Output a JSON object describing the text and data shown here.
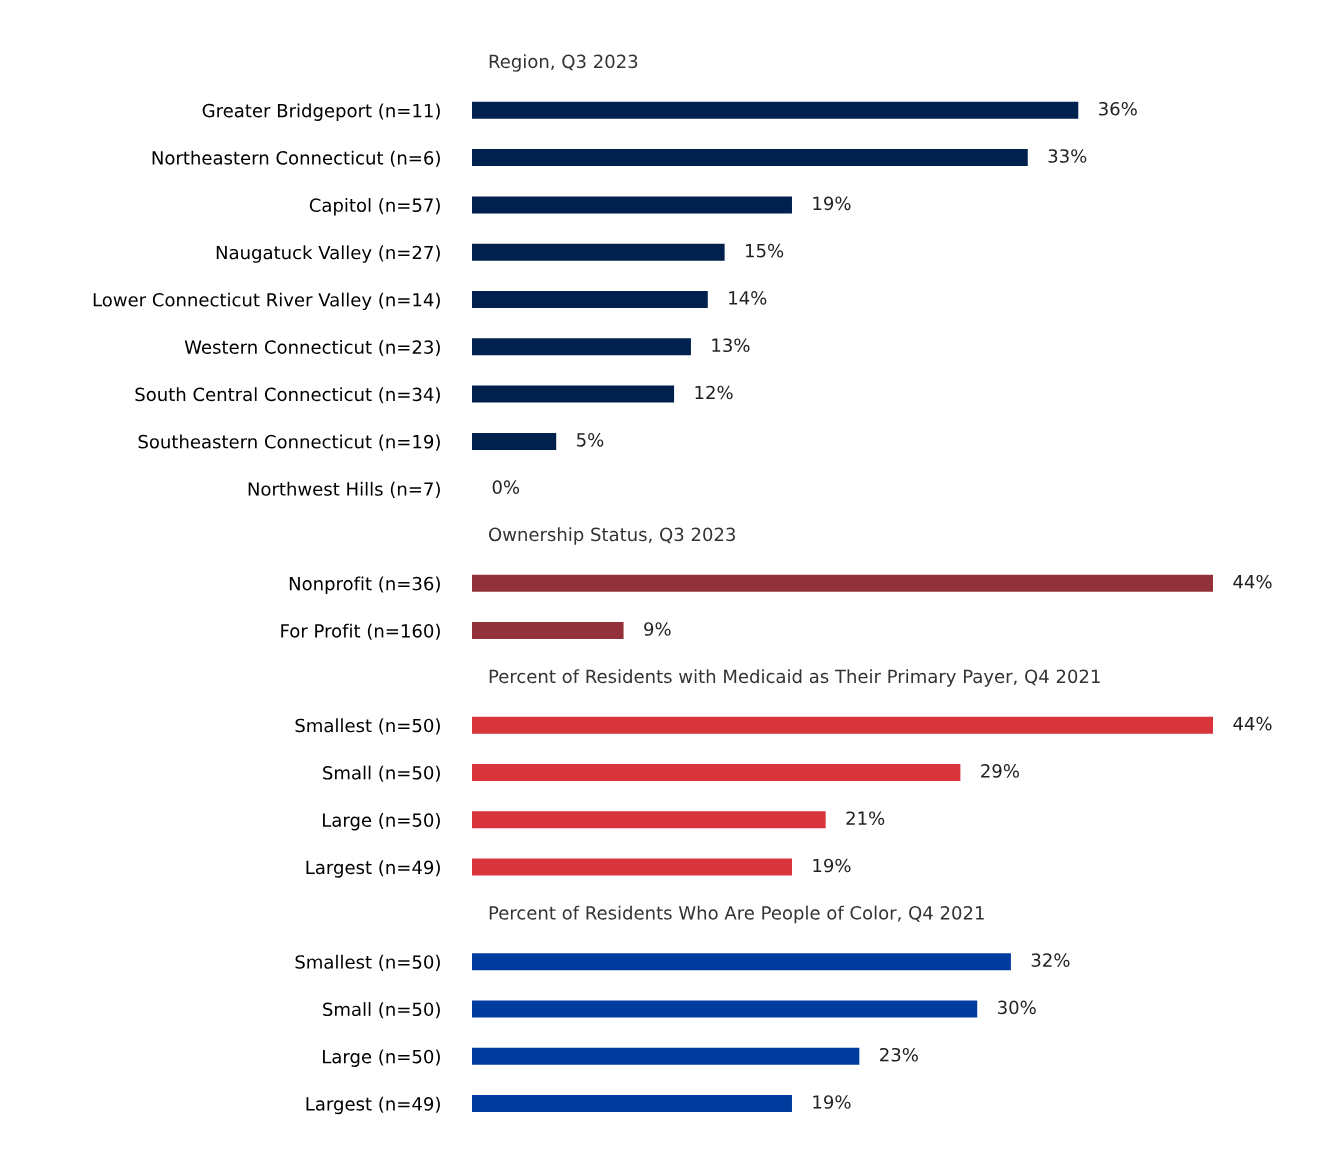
{
  "chart_data": [
    {
      "type": "bar",
      "orientation": "horizontal",
      "title": "Region, Q3 2023",
      "color": "#00204e",
      "categories": [
        "Greater Bridgeport (n=11)",
        "Northeastern Connecticut (n=6)",
        "Capitol (n=57)",
        "Naugatuck Valley (n=27)",
        "Lower Connecticut River Valley (n=14)",
        "Western Connecticut (n=23)",
        "South Central Connecticut (n=34)",
        "Southeastern Connecticut (n=19)",
        "Northwest Hills (n=7)"
      ],
      "values": [
        36,
        33,
        19,
        15,
        14,
        13,
        12,
        5,
        0
      ],
      "value_labels": [
        "36%",
        "33%",
        "19%",
        "15%",
        "14%",
        "13%",
        "12%",
        "5%",
        "0%"
      ]
    },
    {
      "type": "bar",
      "orientation": "horizontal",
      "title": "Ownership Status, Q3 2023",
      "color": "#94323c",
      "categories": [
        "Nonprofit (n=36)",
        "For Profit (n=160)"
      ],
      "values": [
        44,
        9
      ],
      "value_labels": [
        "44%",
        "9%"
      ]
    },
    {
      "type": "bar",
      "orientation": "horizontal",
      "title": "Percent of Residents with Medicaid as Their Primary Payer, Q4 2021",
      "color": "#d9343c",
      "categories": [
        "Smallest (n=50)",
        "Small (n=50)",
        "Large (n=50)",
        "Largest (n=49)"
      ],
      "values": [
        44,
        29,
        21,
        19
      ],
      "value_labels": [
        "44%",
        "29%",
        "21%",
        "19%"
      ]
    },
    {
      "type": "bar",
      "orientation": "horizontal",
      "title": "Percent of Residents Who Are People of Color, Q4 2021",
      "color": "#003c9e",
      "categories": [
        "Smallest (n=50)",
        "Small (n=50)",
        "Large (n=50)",
        "Largest (n=49)"
      ],
      "values": [
        32,
        30,
        23,
        19
      ],
      "value_labels": [
        "32%",
        "30%",
        "23%",
        "19%"
      ]
    }
  ]
}
